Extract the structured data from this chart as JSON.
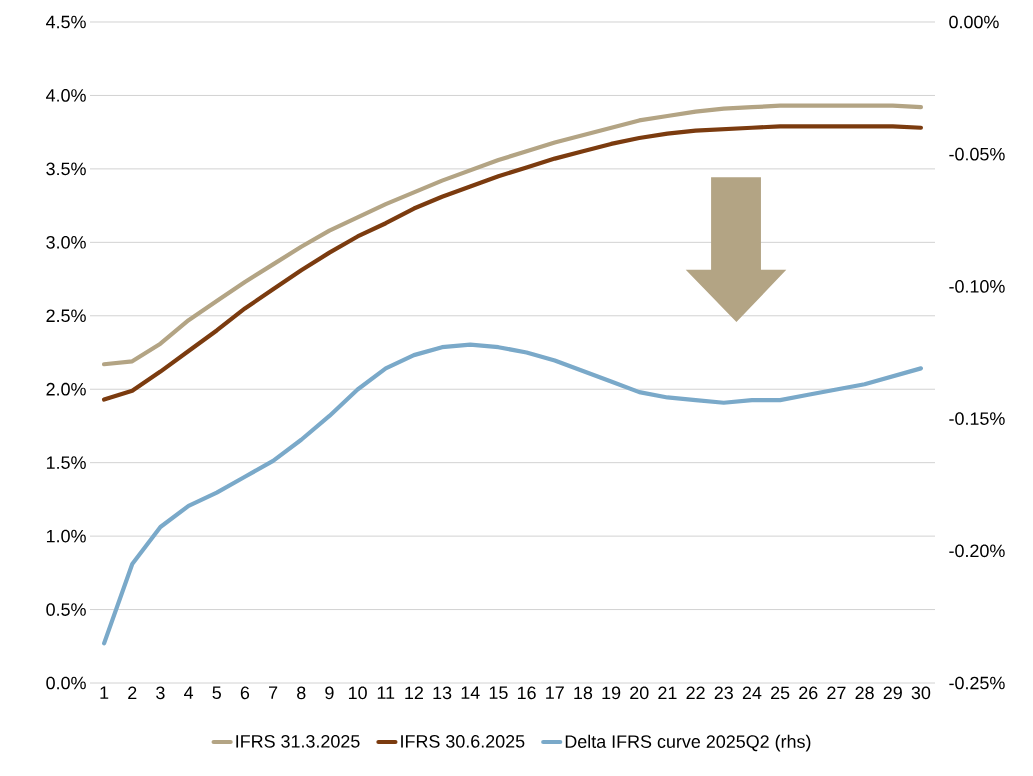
{
  "chart_data": {
    "type": "line",
    "categories": [
      "1",
      "2",
      "3",
      "4",
      "5",
      "6",
      "7",
      "8",
      "9",
      "10",
      "11",
      "12",
      "13",
      "14",
      "15",
      "16",
      "17",
      "18",
      "19",
      "20",
      "21",
      "22",
      "23",
      "24",
      "25",
      "26",
      "27",
      "28",
      "29",
      "30"
    ],
    "series": [
      {
        "name": "IFRS 31.3.2025",
        "color": "#b3a484",
        "values": [
          2.17,
          2.19,
          2.31,
          2.47,
          2.6,
          2.73,
          2.85,
          2.97,
          3.08,
          3.17,
          3.26,
          3.34,
          3.42,
          3.49,
          3.56,
          3.62,
          3.68,
          3.73,
          3.78,
          3.83,
          3.86,
          3.89,
          3.91,
          3.92,
          3.93,
          3.93,
          3.93,
          3.93,
          3.93,
          3.92
        ]
      },
      {
        "name": "IFRS 30.6.2025",
        "color": "#7b3b0f",
        "values": [
          1.93,
          1.99,
          2.12,
          2.26,
          2.4,
          2.55,
          2.68,
          2.81,
          2.93,
          3.04,
          3.13,
          3.23,
          3.31,
          3.38,
          3.45,
          3.51,
          3.57,
          3.62,
          3.67,
          3.71,
          3.74,
          3.76,
          3.77,
          3.78,
          3.79,
          3.79,
          3.79,
          3.79,
          3.79,
          3.78
        ]
      },
      {
        "name": "Delta IFRS curve 2025Q2 (rhs)",
        "color": "#7aa9c9",
        "axis": "y2",
        "values": [
          -0.235,
          -0.205,
          -0.191,
          -0.183,
          -0.178,
          -0.172,
          -0.166,
          -0.158,
          -0.149,
          -0.139,
          -0.131,
          -0.126,
          -0.123,
          -0.122,
          -0.123,
          -0.125,
          -0.128,
          -0.132,
          -0.136,
          -0.14,
          -0.142,
          -0.143,
          -0.144,
          -0.143,
          -0.143,
          -0.141,
          -0.139,
          -0.137,
          -0.134,
          -0.131
        ]
      }
    ],
    "ylim": [
      0,
      4.5
    ],
    "yticks": [
      {
        "value": 0,
        "label": "0.0%"
      },
      {
        "value": 0.5,
        "label": "0.5%"
      },
      {
        "value": 1,
        "label": "1.0%"
      },
      {
        "value": 1.5,
        "label": "1.5%"
      },
      {
        "value": 2,
        "label": "2.0%"
      },
      {
        "value": 2.5,
        "label": "2.5%"
      },
      {
        "value": 3,
        "label": "3.0%"
      },
      {
        "value": 3.5,
        "label": "3.5%"
      },
      {
        "value": 4,
        "label": "4.0%"
      },
      {
        "value": 4.5,
        "label": "4.5%"
      }
    ],
    "y2lim": [
      -0.25,
      0
    ],
    "y2ticks": [
      {
        "value": -0.25,
        "label": "-0.25%"
      },
      {
        "value": -0.2,
        "label": "-0.20%"
      },
      {
        "value": -0.15,
        "label": "-0.15%"
      },
      {
        "value": -0.1,
        "label": "-0.10%"
      },
      {
        "value": -0.05,
        "label": "-0.05%"
      },
      {
        "value": 0,
        "label": "0.00%"
      }
    ],
    "grid": "y",
    "legend": "bottom"
  }
}
